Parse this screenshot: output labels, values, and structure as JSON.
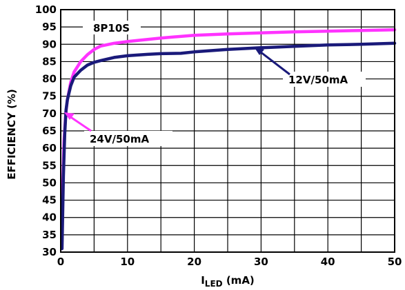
{
  "chart_data": {
    "type": "line",
    "title": "",
    "xlabel": {
      "main": "I",
      "sub": "LED",
      "unit": " (mA)"
    },
    "ylabel": "EFFICIENCY (%)",
    "xlim": [
      0,
      50
    ],
    "ylim": [
      30,
      100
    ],
    "xticks": [
      "0",
      "10",
      "20",
      "30",
      "40",
      "50"
    ],
    "yticks": [
      "30",
      "35",
      "40",
      "45",
      "50",
      "55",
      "60",
      "65",
      "70",
      "75",
      "80",
      "85",
      "90",
      "95",
      "100"
    ],
    "grid": true,
    "annotations": {
      "label_8p10s": "8P10S",
      "label_12v": "12V/50mA",
      "label_24v": "24V/50mA"
    },
    "series": [
      {
        "name": "24V/50mA",
        "color": "#ff33ff",
        "points": [
          [
            0.15,
            31
          ],
          [
            0.3,
            48
          ],
          [
            0.5,
            62
          ],
          [
            0.75,
            70
          ],
          [
            1.0,
            74
          ],
          [
            1.5,
            79
          ],
          [
            2,
            82
          ],
          [
            3,
            85
          ],
          [
            4,
            87
          ],
          [
            5,
            88.5
          ],
          [
            6,
            89.5
          ],
          [
            8,
            90.3
          ],
          [
            10,
            90.8
          ],
          [
            15,
            91.8
          ],
          [
            20,
            92.6
          ],
          [
            25,
            93.0
          ],
          [
            30,
            93.3
          ],
          [
            35,
            93.6
          ],
          [
            40,
            93.8
          ],
          [
            45,
            94.0
          ],
          [
            50,
            94.2
          ]
        ]
      },
      {
        "name": "12V/50mA",
        "color": "#1a1a7a",
        "points": [
          [
            0.2,
            31
          ],
          [
            0.4,
            52
          ],
          [
            0.6,
            64
          ],
          [
            0.8,
            71
          ],
          [
            1.0,
            74
          ],
          [
            1.5,
            78
          ],
          [
            2,
            80.5
          ],
          [
            3,
            82.5
          ],
          [
            4,
            84
          ],
          [
            5,
            84.8
          ],
          [
            6,
            85.3
          ],
          [
            8,
            86.2
          ],
          [
            10,
            86.7
          ],
          [
            13,
            87.1
          ],
          [
            15,
            87.3
          ],
          [
            18,
            87.4
          ],
          [
            20,
            87.8
          ],
          [
            25,
            88.5
          ],
          [
            30,
            89.0
          ],
          [
            35,
            89.4
          ],
          [
            40,
            89.8
          ],
          [
            45,
            90.0
          ],
          [
            50,
            90.3
          ]
        ]
      }
    ]
  }
}
